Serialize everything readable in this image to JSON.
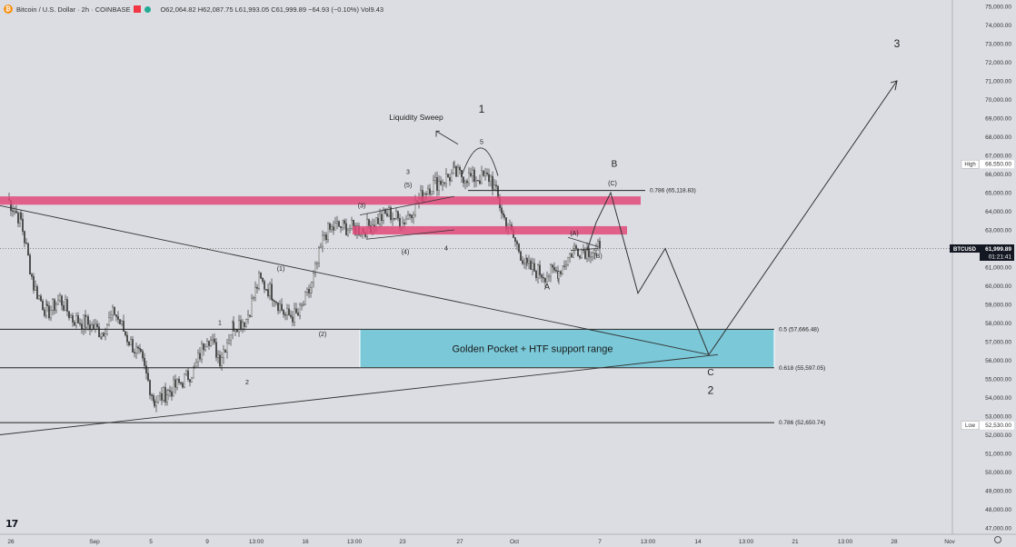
{
  "header": {
    "symbol": "Bitcoin / U.S. Dollar · 2h · COINBASE",
    "ohlc": "O62,064.82  H62,087.75  L61,993.05  C61,999.89  −64.93 (−0.10%)  Vol9.43"
  },
  "price_axis": {
    "ticks": [
      "75,000.00",
      "74,000.00",
      "73,000.00",
      "72,000.00",
      "71,000.00",
      "70,000.00",
      "69,000.00",
      "68,000.00",
      "67,000.00",
      "66,000.00",
      "65,000.00",
      "64,000.00",
      "63,000.00",
      "62,000.00",
      "61,000.00",
      "60,000.00",
      "59,000.00",
      "58,000.00",
      "57,000.00",
      "56,000.00",
      "55,000.00",
      "54,000.00",
      "53,000.00",
      "52,000.00",
      "51,000.00",
      "50,000.00",
      "49,000.00",
      "48,000.00",
      "47,000.00"
    ],
    "high_tag": "High",
    "high_value": "66,550.00",
    "low_tag": "Low",
    "low_value": "52,530.00",
    "symbol_tag": "BTCUSD",
    "last_price": "61,999.89",
    "countdown": "01:21:41"
  },
  "time_axis": [
    "26",
    "Sep",
    "5",
    "9",
    "13:00",
    "16",
    "13:00",
    "23",
    "27",
    "Oct",
    "7",
    "13:00",
    "14",
    "13:00",
    "21",
    "13:00",
    "28",
    "Nov"
  ],
  "annotations": {
    "liquidity_sweep": "Liquidity Sweep",
    "golden_pocket": "Golden Pocket + HTF support range",
    "fib_05": "0.5 (57,666.48)",
    "fib_0618": "0.618 (55,597.05)",
    "fib_0786_low": "0.786 (52,650.74)",
    "fib_0786_high": "0.786 (65,118.83)"
  },
  "wave_labels": [
    "1",
    "5",
    "3",
    "(5)",
    "(3)",
    "(4)",
    "4",
    "(1)",
    "(2)",
    "1",
    "2",
    "A",
    "(A)",
    "(B)",
    "B",
    "(C)",
    "C",
    "2",
    "3"
  ],
  "colors": {
    "background": "#dcdde3",
    "resistance_band": "#e04a7a",
    "golden_pocket": "#7ac8d8",
    "candles": "#4a4a4a",
    "line": "#333333"
  },
  "chart_data": {
    "type": "candlestick",
    "symbol": "BTCUSD",
    "timeframe": "2h",
    "y_range": [
      47000,
      75000
    ],
    "x_range_labels": [
      "26",
      "Nov"
    ],
    "price_path": [
      [
        "26",
        64700
      ],
      [
        "27",
        63500
      ],
      [
        "28",
        60000
      ],
      [
        "29",
        58500
      ],
      [
        "30",
        59300
      ],
      [
        "31",
        58200
      ],
      [
        "Sep 1",
        58000
      ],
      [
        "Sep 2",
        57500
      ],
      [
        "Sep 3",
        58600
      ],
      [
        "Sep 4",
        57200
      ],
      [
        "Sep 5",
        56100
      ],
      [
        "Sep 6",
        53800
      ],
      [
        "Sep 7",
        54300
      ],
      [
        "Sep 8",
        54800
      ],
      [
        "Sep 9",
        55500
      ],
      [
        "Sep 10",
        57400
      ],
      [
        "Sep 11",
        56100
      ],
      [
        "Sep 12",
        57900
      ],
      [
        "Sep 13",
        58200
      ],
      [
        "Sep 14",
        60300
      ],
      [
        "Sep 15",
        59600
      ],
      [
        "Sep 16",
        58400
      ],
      [
        "Sep 17",
        58400
      ],
      [
        "Sep 18",
        60000
      ],
      [
        "Sep 19",
        62800
      ],
      [
        "Sep 20",
        63200
      ],
      [
        "Sep 21",
        63100
      ],
      [
        "Sep 22",
        63000
      ],
      [
        "Sep 23",
        63500
      ],
      [
        "Sep 24",
        63900
      ],
      [
        "Sep 25",
        63400
      ],
      [
        "Sep 26",
        65300
      ],
      [
        "Sep 27",
        66000
      ],
      [
        "Sep 28",
        65800
      ],
      [
        "Sep 29",
        65800
      ],
      [
        "Sep 30",
        63600
      ],
      [
        "Oct 1",
        61000
      ],
      [
        "Oct 2",
        60600
      ],
      [
        "Oct 3",
        60800
      ],
      [
        "Oct 4",
        62000
      ],
      [
        "Oct 5",
        61900
      ],
      [
        "Oct 6",
        62000
      ]
    ],
    "projection": [
      [
        "Oct 6",
        62000
      ],
      [
        "Oct 7",
        65000
      ],
      [
        "Oct 9",
        59500
      ],
      [
        "Oct 10",
        62000
      ],
      [
        "Oct 14",
        56300
      ],
      [
        "Oct 31",
        71000
      ]
    ],
    "levels": [
      {
        "label": "0.5",
        "value": 57666.48
      },
      {
        "label": "0.618",
        "value": 55597.05
      },
      {
        "label": "0.786",
        "value": 52650.74
      },
      {
        "label": "0.786",
        "value": 65118.83
      }
    ],
    "zones": [
      {
        "label": "Golden Pocket + HTF support range",
        "from": 55597.05,
        "to": 57666.48
      },
      {
        "from": 64400,
        "to": 64800
      },
      {
        "from": 62800,
        "to": 63200
      }
    ],
    "high": 66550.0,
    "low": 52530.0,
    "last": 61999.89,
    "grid": false,
    "legend": "none"
  }
}
